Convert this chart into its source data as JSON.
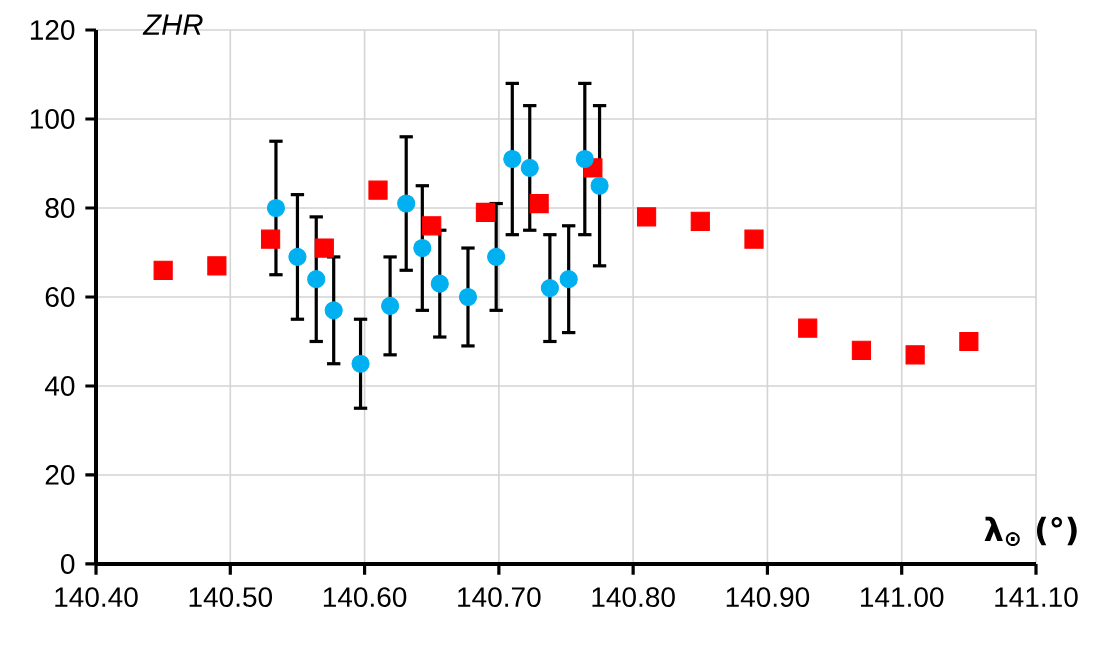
{
  "chart_data": {
    "type": "scatter",
    "xlabel": "λ$_{⊙}$ (°)",
    "ylabel": "*ZHR*",
    "xlim": [
      140.4,
      141.1
    ],
    "ylim": [
      0,
      120
    ],
    "xticks": [
      {
        "value": 140.4,
        "label": "140.40"
      },
      {
        "value": 140.5,
        "label": "140.50"
      },
      {
        "value": 140.6,
        "label": "140.60"
      },
      {
        "value": 140.7,
        "label": "140.70"
      },
      {
        "value": 140.8,
        "label": "140.80"
      },
      {
        "value": 140.9,
        "label": "140.90"
      },
      {
        "value": 141.0,
        "label": "141.00"
      },
      {
        "value": 141.1,
        "label": "141.10"
      }
    ],
    "yticks": [
      0,
      20,
      40,
      60,
      80,
      100,
      120
    ],
    "grid": true,
    "series": [
      {
        "color": "#ff0000",
        "marker": "square",
        "x": [
          140.45,
          140.49,
          140.53,
          140.57,
          140.61,
          140.65,
          140.69,
          140.73,
          140.77,
          140.81,
          140.85,
          140.89,
          140.93,
          140.97,
          141.01,
          141.05
        ],
        "values": [
          66,
          67,
          73,
          71,
          84,
          76,
          79,
          81,
          89,
          78,
          77,
          73,
          53,
          48,
          47,
          50
        ]
      },
      {
        "color": "#00b0f0",
        "marker": "circle",
        "x": [
          140.534,
          140.55,
          140.564,
          140.577,
          140.597,
          140.619,
          140.631,
          140.643,
          140.656,
          140.677,
          140.698,
          140.71,
          140.723,
          140.738,
          140.752,
          140.764,
          140.775
        ],
        "values": [
          80,
          69,
          64,
          57,
          45,
          58,
          81,
          71,
          63,
          60,
          69,
          91,
          89,
          62,
          64,
          91,
          85
        ],
        "errors": [
          15,
          14,
          14,
          12,
          10,
          11,
          15,
          14,
          12,
          11,
          12,
          17,
          14,
          12,
          12,
          17,
          18
        ]
      }
    ]
  }
}
